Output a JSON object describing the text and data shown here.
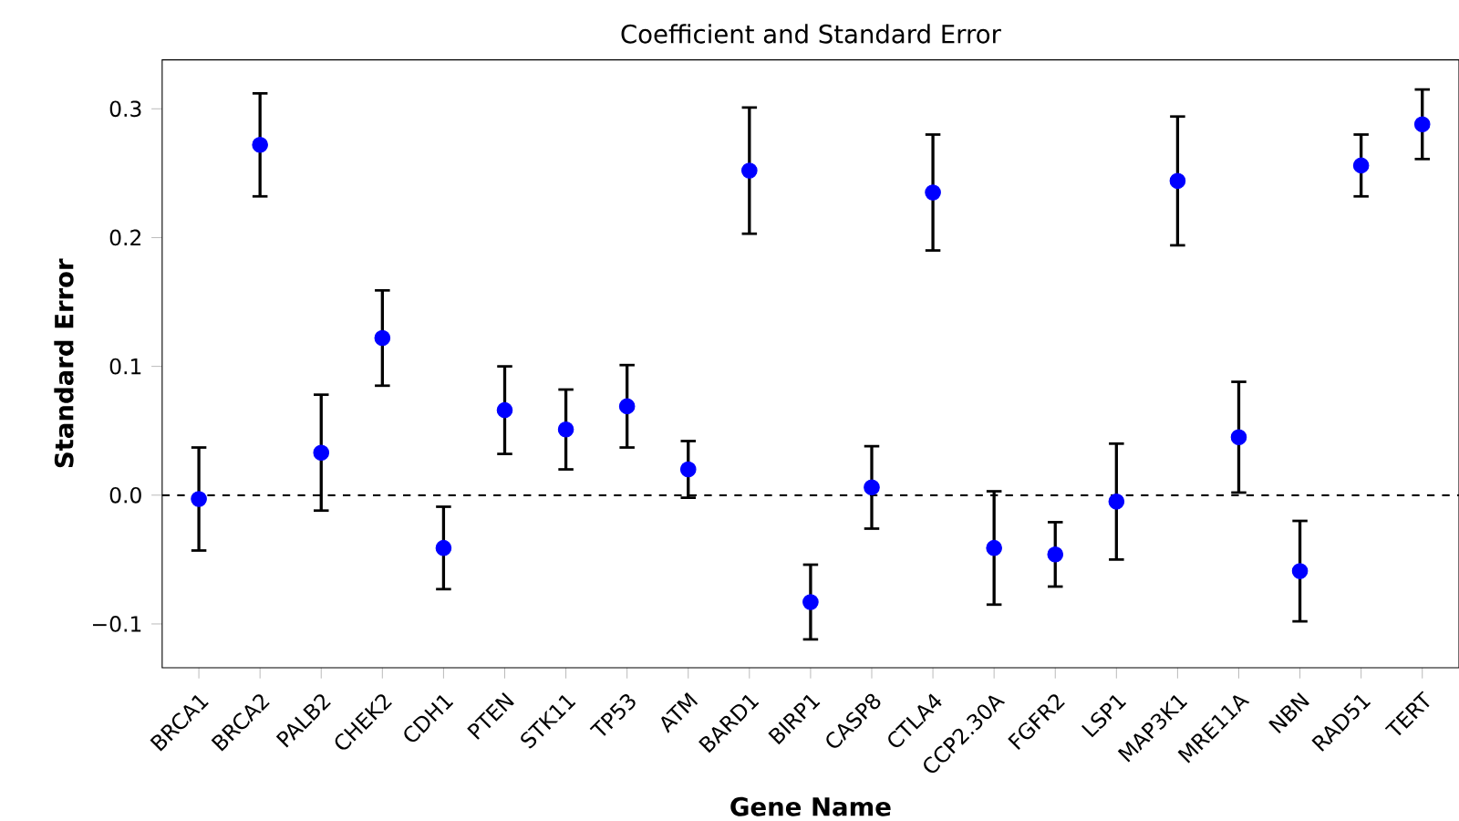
{
  "chart_data": {
    "type": "scatter",
    "title": "Coefficient and Standard Error",
    "xlabel": "Gene Name",
    "ylabel": "Standard Error",
    "categories": [
      "BRCA1",
      "BRCA2",
      "PALB2",
      "CHEK2",
      "CDH1",
      "PTEN",
      "STK11",
      "TP53",
      "ATM",
      "BARD1",
      "BIRP1",
      "CASP8",
      "CTLA4",
      "CCP2.30A",
      "FGFR2",
      "LSP1",
      "MAP3K1",
      "MRE11A",
      "NBN",
      "RAD51",
      "TERT"
    ],
    "values": [
      -0.003,
      0.272,
      0.033,
      0.122,
      -0.041,
      0.066,
      0.051,
      0.069,
      0.02,
      0.252,
      -0.083,
      0.006,
      0.235,
      -0.041,
      -0.046,
      -0.005,
      0.244,
      0.045,
      -0.059,
      0.256,
      0.288
    ],
    "errors": [
      0.04,
      0.04,
      0.045,
      0.037,
      0.032,
      0.034,
      0.031,
      0.032,
      0.022,
      0.049,
      0.029,
      0.032,
      0.045,
      0.044,
      0.025,
      0.045,
      0.05,
      0.043,
      0.039,
      0.024,
      0.027
    ],
    "color": "#0000ff",
    "ylim": [
      -0.134,
      0.338
    ],
    "yticks": [
      {
        "value": -0.1,
        "label": "−0.1"
      },
      {
        "value": 0.0,
        "label": "0.0"
      },
      {
        "value": 0.1,
        "label": "0.1"
      },
      {
        "value": 0.2,
        "label": "0.2"
      },
      {
        "value": 0.3,
        "label": "0.3"
      }
    ],
    "ref_lines": [
      {
        "axis": "y",
        "value": 0,
        "color": "#000000",
        "line_style": "dashed"
      }
    ],
    "grid": false
  }
}
